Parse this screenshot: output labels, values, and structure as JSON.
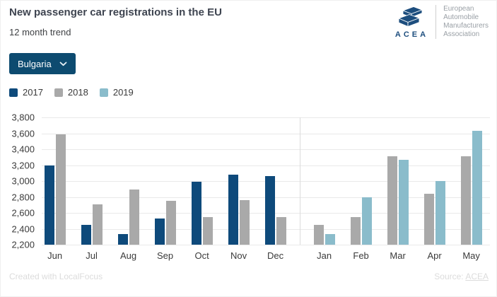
{
  "header": {
    "title": "New passenger car registrations in the EU",
    "subtitle": "12 month trend"
  },
  "logo": {
    "acronym": "ACEA",
    "org_lines": [
      "European",
      "Automobile",
      "Manufacturers",
      "Association"
    ]
  },
  "controls": {
    "country_selector": {
      "value": "Bulgaria"
    }
  },
  "colors": {
    "series_2017": "#0e4a7b",
    "series_2018": "#a9a9a9",
    "series_2019": "#8abccb",
    "button_bg": "#0d4b70",
    "logo_navy": "#1d4e7e",
    "gridline": "#e9e9e9",
    "year_divider": "#dcdcdc"
  },
  "legend": [
    {
      "label": "2017",
      "color": "#0e4a7b"
    },
    {
      "label": "2018",
      "color": "#a9a9a9"
    },
    {
      "label": "2019",
      "color": "#8abccb"
    }
  ],
  "chart_data": {
    "type": "bar",
    "title": "New passenger car registrations in the EU",
    "subtitle": "12 month trend",
    "region": "Bulgaria",
    "categories": [
      "Jun",
      "Jul",
      "Aug",
      "Sep",
      "Oct",
      "Nov",
      "Dec",
      "Jan",
      "Feb",
      "Mar",
      "Apr",
      "May"
    ],
    "series": [
      {
        "name": "2017",
        "color": "#0e4a7b",
        "values": [
          3200,
          2450,
          2330,
          2530,
          2990,
          3080,
          3060,
          null,
          null,
          null,
          null,
          null
        ]
      },
      {
        "name": "2018",
        "color": "#a9a9a9",
        "values": [
          3590,
          2710,
          2890,
          2750,
          2550,
          2760,
          2550,
          2450,
          2550,
          3310,
          2840,
          3310
        ]
      },
      {
        "name": "2019",
        "color": "#8abccb",
        "values": [
          null,
          null,
          null,
          null,
          null,
          null,
          null,
          2330,
          2800,
          3270,
          3000,
          3630
        ]
      }
    ],
    "ylim": [
      2200,
      3800
    ],
    "ytick_step": 200,
    "grid": true,
    "legend_position": "top-left",
    "year_break_after_index": 6
  },
  "footer": {
    "credit": "Created with LocalFocus",
    "source_prefix": "Source: ",
    "source_link": "ACEA"
  }
}
